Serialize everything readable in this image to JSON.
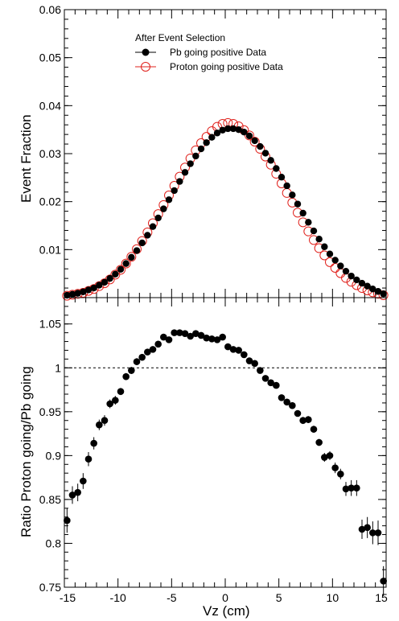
{
  "chart_data": [
    {
      "type": "scatter",
      "panel": "top",
      "ylabel": "Event Fraction",
      "ylim": [
        0,
        0.06
      ],
      "xlim": [
        -15,
        15
      ],
      "yticks": [
        "0.01",
        "0.02",
        "0.03",
        "0.04",
        "0.05",
        "0.06"
      ],
      "yticks_values": [
        0.01,
        0.02,
        0.03,
        0.04,
        0.05,
        0.06
      ],
      "legend": {
        "title": "After Event Selection",
        "placement": "top-left",
        "entries": [
          "Pb going positive Data",
          "Proton going positive Data"
        ]
      },
      "series": [
        {
          "name": "Pb going positive Data",
          "marker": "filled-circle",
          "color": "#000000",
          "x": [
            -14.75,
            -14.25,
            -13.75,
            -13.25,
            -12.75,
            -12.25,
            -11.75,
            -11.25,
            -10.75,
            -10.25,
            -9.75,
            -9.25,
            -8.75,
            -8.25,
            -7.75,
            -7.25,
            -6.75,
            -6.25,
            -5.75,
            -5.25,
            -4.75,
            -4.25,
            -3.75,
            -3.25,
            -2.75,
            -2.25,
            -1.75,
            -1.25,
            -0.75,
            -0.25,
            0.25,
            0.75,
            1.25,
            1.75,
            2.25,
            2.75,
            3.25,
            3.75,
            4.25,
            4.75,
            5.25,
            5.75,
            6.25,
            6.75,
            7.25,
            7.75,
            8.25,
            8.75,
            9.25,
            9.75,
            10.25,
            10.75,
            11.25,
            11.75,
            12.25,
            12.75,
            13.25,
            13.75,
            14.25,
            14.75
          ],
          "y": [
            0.0005,
            0.0007,
            0.0009,
            0.0012,
            0.0016,
            0.002,
            0.0026,
            0.0032,
            0.004,
            0.0049,
            0.0059,
            0.0071,
            0.0084,
            0.0098,
            0.0114,
            0.013,
            0.0148,
            0.0166,
            0.0185,
            0.0204,
            0.0223,
            0.0242,
            0.0261,
            0.0279,
            0.0295,
            0.031,
            0.0323,
            0.0334,
            0.0343,
            0.0349,
            0.0352,
            0.0352,
            0.035,
            0.0345,
            0.0337,
            0.0327,
            0.0315,
            0.0301,
            0.0286,
            0.0269,
            0.0251,
            0.0233,
            0.0214,
            0.0195,
            0.0176,
            0.0157,
            0.0139,
            0.0122,
            0.0106,
            0.0091,
            0.0078,
            0.0066,
            0.0055,
            0.0045,
            0.0037,
            0.003,
            0.0024,
            0.0018,
            0.0013,
            0.0008
          ]
        },
        {
          "name": "Proton going positive Data",
          "marker": "open-circle",
          "color": "#e0201b",
          "x": [
            -14.75,
            -14.25,
            -13.75,
            -13.25,
            -12.75,
            -12.25,
            -11.75,
            -11.25,
            -10.75,
            -10.25,
            -9.75,
            -9.25,
            -8.75,
            -8.25,
            -7.75,
            -7.25,
            -6.75,
            -6.25,
            -5.75,
            -5.25,
            -4.75,
            -4.25,
            -3.75,
            -3.25,
            -2.75,
            -2.25,
            -1.75,
            -1.25,
            -0.75,
            -0.25,
            0.25,
            0.75,
            1.25,
            1.75,
            2.25,
            2.75,
            3.25,
            3.75,
            4.25,
            4.75,
            5.25,
            5.75,
            6.25,
            6.75,
            7.25,
            7.75,
            8.25,
            8.75,
            9.25,
            9.75,
            10.25,
            10.75,
            11.25,
            11.75,
            12.25,
            12.75,
            13.25,
            13.75,
            14.25,
            14.75
          ],
          "y": [
            0.0004,
            0.0006,
            0.0008,
            0.001,
            0.0014,
            0.0018,
            0.0024,
            0.003,
            0.0038,
            0.0048,
            0.0058,
            0.0071,
            0.0085,
            0.0101,
            0.0118,
            0.0136,
            0.0155,
            0.0174,
            0.0193,
            0.0213,
            0.0233,
            0.0252,
            0.0271,
            0.029,
            0.0307,
            0.0322,
            0.0335,
            0.0347,
            0.0356,
            0.0362,
            0.0364,
            0.0362,
            0.0357,
            0.0349,
            0.0338,
            0.0325,
            0.031,
            0.0294,
            0.0277,
            0.0258,
            0.0238,
            0.0218,
            0.0198,
            0.0177,
            0.0157,
            0.0138,
            0.012,
            0.0103,
            0.0088,
            0.0074,
            0.0062,
            0.0051,
            0.0041,
            0.0033,
            0.0026,
            0.002,
            0.0015,
            0.0011,
            0.0008,
            0.0005
          ]
        }
      ]
    },
    {
      "type": "scatter",
      "panel": "bottom",
      "xlabel": "Vz (cm)",
      "ylabel": "Ratio Proton going/Pb going",
      "ylim": [
        0.75,
        1.08
      ],
      "xlim": [
        -15,
        15
      ],
      "xticks": [
        "-15",
        "-10",
        "-5",
        "0",
        "5",
        "10",
        "15"
      ],
      "xticks_values": [
        -15,
        -10,
        -5,
        0,
        5,
        10,
        15
      ],
      "yticks": [
        "0.75",
        "0.8",
        "0.85",
        "0.9",
        "0.95",
        "1",
        "1.05"
      ],
      "yticks_values": [
        0.75,
        0.8,
        0.85,
        0.9,
        0.95,
        1.0,
        1.05
      ],
      "reference_line": 1.0,
      "series": [
        {
          "name": "",
          "marker": "filled-circle",
          "color": "#000000",
          "x": [
            -14.75,
            -14.25,
            -13.75,
            -13.25,
            -12.75,
            -12.25,
            -11.75,
            -11.25,
            -10.75,
            -10.25,
            -9.75,
            -9.25,
            -8.75,
            -8.25,
            -7.75,
            -7.25,
            -6.75,
            -6.25,
            -5.75,
            -5.25,
            -4.75,
            -4.25,
            -3.75,
            -3.25,
            -2.75,
            -2.25,
            -1.75,
            -1.25,
            -0.75,
            -0.25,
            0.25,
            0.75,
            1.25,
            1.75,
            2.25,
            2.75,
            3.25,
            3.75,
            4.25,
            4.75,
            5.25,
            5.75,
            6.25,
            6.75,
            7.25,
            7.75,
            8.25,
            8.75,
            9.25,
            9.75,
            10.25,
            10.75,
            11.25,
            11.75,
            12.25,
            12.75,
            13.25,
            13.75,
            14.25,
            14.75
          ],
          "y": [
            0.826,
            0.855,
            0.858,
            0.871,
            0.896,
            0.914,
            0.935,
            0.94,
            0.959,
            0.963,
            0.973,
            0.99,
            0.997,
            1.007,
            1.012,
            1.018,
            1.021,
            1.027,
            1.035,
            1.032,
            1.04,
            1.04,
            1.039,
            1.036,
            1.039,
            1.037,
            1.034,
            1.033,
            1.032,
            1.035,
            1.024,
            1.021,
            1.02,
            1.015,
            1.008,
            1.005,
            0.997,
            0.988,
            0.983,
            0.98,
            0.966,
            0.961,
            0.957,
            0.948,
            0.94,
            0.941,
            0.93,
            0.915,
            0.898,
            0.9,
            0.886,
            0.879,
            0.862,
            0.863,
            0.863,
            0.816,
            0.818,
            0.812,
            0.812,
            0.757
          ],
          "yerr": [
            0.014,
            0.01,
            0.01,
            0.009,
            0.008,
            0.007,
            0.006,
            0.006,
            0.005,
            0.005,
            0.004,
            0.004,
            0.004,
            0.004,
            0.003,
            0.003,
            0.003,
            0.003,
            0.003,
            0.003,
            0.003,
            0.003,
            0.003,
            0.003,
            0.003,
            0.003,
            0.003,
            0.003,
            0.003,
            0.003,
            0.003,
            0.003,
            0.003,
            0.003,
            0.003,
            0.003,
            0.003,
            0.003,
            0.003,
            0.003,
            0.003,
            0.003,
            0.003,
            0.003,
            0.004,
            0.004,
            0.004,
            0.004,
            0.005,
            0.005,
            0.006,
            0.006,
            0.008,
            0.009,
            0.009,
            0.011,
            0.012,
            0.013,
            0.014,
            0.017
          ]
        }
      ]
    }
  ]
}
